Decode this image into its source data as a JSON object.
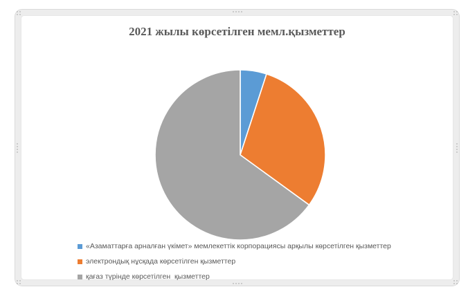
{
  "chart_data": {
    "type": "pie",
    "title": "2021 жылы көрсетілген мемл.қызметтер",
    "legend_position": "bottom-left",
    "start_angle_deg": 0,
    "direction": "clockwise",
    "values_note": "percent, estimated from slice arc angles (no data labels shown)",
    "slices": [
      {
        "label": "«Азаматтарға арналған үкімет» мемлекеттік корпорациясы арқылы көрсетілген қызметтер",
        "value": 5,
        "color": "#5B9BD5"
      },
      {
        "label": "электрондық нұсқада көрсетілген қызметтер",
        "value": 30,
        "color": "#ED7D31"
      },
      {
        "label": "қағаз түрінде көрсетілген  қызметтер",
        "value": 65,
        "color": "#A5A5A5"
      }
    ]
  },
  "styles": {
    "title_color": "#595959",
    "legend_text_color": "#595959",
    "slice_separator_color": "#FFFFFF",
    "frame_band_color": "#EDEDED",
    "handle_dot_color": "#BFBFBF"
  }
}
